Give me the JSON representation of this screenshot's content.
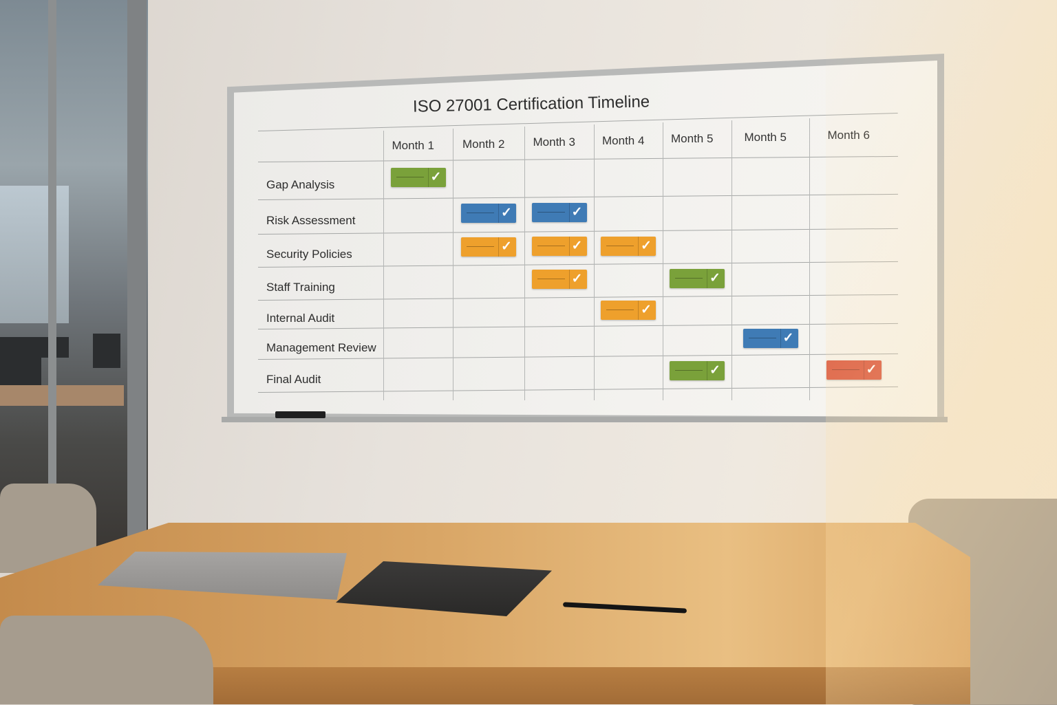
{
  "whiteboard": {
    "title": "ISO 27001 Certification Timeline",
    "months": [
      "Month 1",
      "Month 2",
      "Month 3",
      "Month 4",
      "Month 5",
      "Month 5",
      "Month 6"
    ],
    "colors": {
      "green": "#7aa13a",
      "blue": "#3f7bb5",
      "orange": "#eea02c",
      "red": "#d9533c"
    },
    "check_icon": "check-icon",
    "tasks": [
      {
        "label": "Gap Analysis",
        "cells": [
          {
            "month": 1,
            "color": "green"
          }
        ]
      },
      {
        "label": "Risk Assessment",
        "cells": [
          {
            "month": 2,
            "color": "blue"
          },
          {
            "month": 3,
            "color": "blue"
          }
        ]
      },
      {
        "label": "Security Policies",
        "cells": [
          {
            "month": 2,
            "color": "orange"
          },
          {
            "month": 3,
            "color": "orange"
          },
          {
            "month": 4,
            "color": "orange"
          }
        ]
      },
      {
        "label": "Staff Training",
        "cells": [
          {
            "month": 3,
            "color": "orange"
          },
          {
            "month": 5,
            "color": "green"
          }
        ]
      },
      {
        "label": "Internal Audit",
        "cells": [
          {
            "month": 4,
            "color": "orange"
          }
        ]
      },
      {
        "label": "Management Review",
        "cells": [
          {
            "month": 6,
            "color": "blue"
          }
        ]
      },
      {
        "label": "Final Audit",
        "cells": [
          {
            "month": 5,
            "color": "green"
          },
          {
            "month": 7,
            "color": "red"
          }
        ]
      }
    ]
  }
}
